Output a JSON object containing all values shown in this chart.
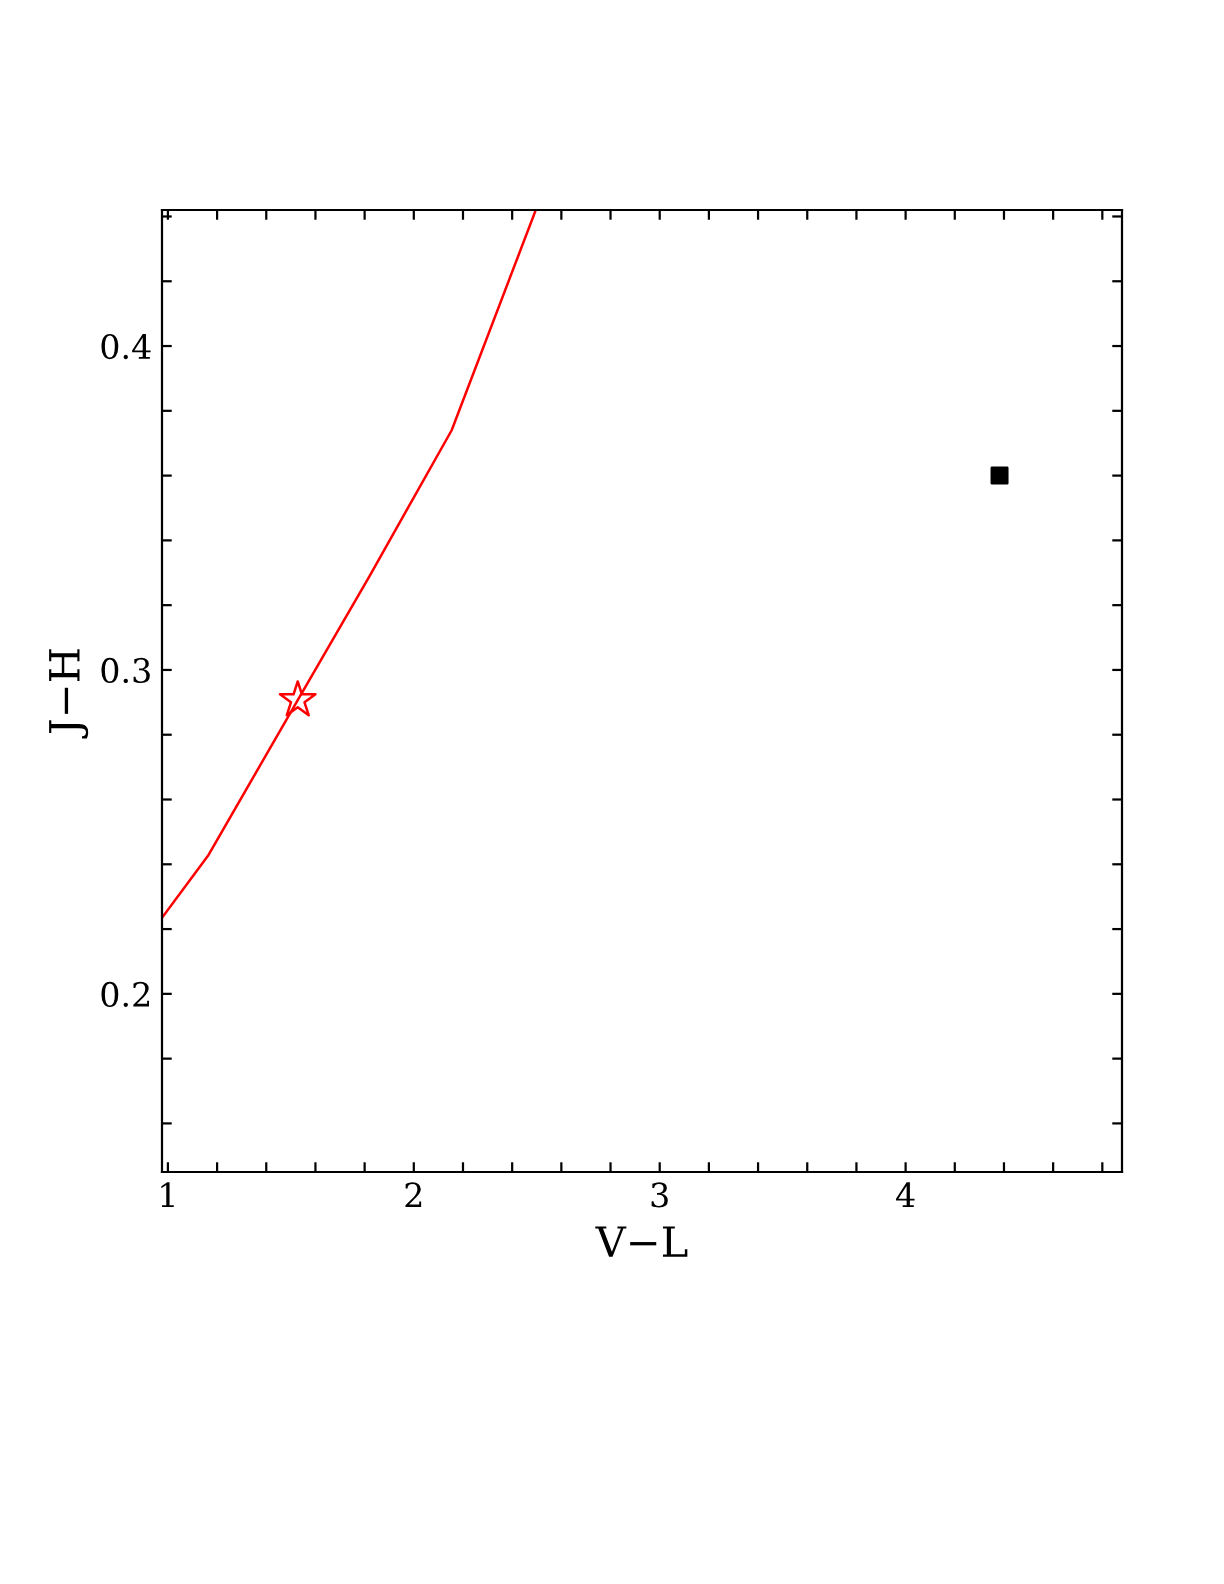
{
  "chart_data": {
    "type": "line",
    "xlabel": "V−L",
    "ylabel": "J−H",
    "xlim": [
      0.976,
      4.88
    ],
    "ylim": [
      0.145,
      0.442
    ],
    "xticks": [
      1,
      2,
      3,
      4,
      {
        "value": 1.2,
        "label": null
      },
      {
        "value": 1.4,
        "label": null
      },
      {
        "value": 1.6,
        "label": null
      },
      {
        "value": 1.8,
        "label": null
      },
      {
        "value": 2.2,
        "label": null
      },
      {
        "value": 2.4,
        "label": null
      },
      {
        "value": 2.6,
        "label": null
      },
      {
        "value": 2.8,
        "label": null
      },
      {
        "value": 3.2,
        "label": null
      },
      {
        "value": 3.4,
        "label": null
      },
      {
        "value": 3.6,
        "label": null
      },
      {
        "value": 3.8,
        "label": null
      },
      {
        "value": 4.2,
        "label": null
      },
      {
        "value": 4.4,
        "label": null
      },
      {
        "value": 4.6,
        "label": null
      },
      {
        "value": 4.8,
        "label": null
      }
    ],
    "yticks": [
      0.2,
      0.3,
      0.4,
      {
        "value": 0.16,
        "label": null
      },
      {
        "value": 0.18,
        "label": null
      },
      {
        "value": 0.22,
        "label": null
      },
      {
        "value": 0.24,
        "label": null
      },
      {
        "value": 0.26,
        "label": null
      },
      {
        "value": 0.28,
        "label": null
      },
      {
        "value": 0.32,
        "label": null
      },
      {
        "value": 0.34,
        "label": null
      },
      {
        "value": 0.36,
        "label": null
      },
      {
        "value": 0.38,
        "label": null
      },
      {
        "value": 0.42,
        "label": null
      },
      {
        "value": 0.44,
        "label": null
      }
    ],
    "grid": false,
    "legend": false,
    "series": [
      {
        "color": "#ff0000",
        "marker": "none",
        "line_style": "solid",
        "x": [
          0.976,
          1.163,
          1.528,
          1.82,
          2.154,
          2.496
        ],
        "values": [
          0.2235,
          0.2426,
          0.2907,
          0.329,
          0.374,
          0.442
        ]
      },
      {
        "type": "scatter",
        "color": "#ff0000",
        "marker": "star",
        "x": [
          1.528
        ],
        "values": [
          0.2907
        ]
      },
      {
        "type": "scatter",
        "color": "#000000",
        "marker": "square",
        "x": [
          4.382
        ],
        "values": [
          0.36
        ]
      }
    ]
  }
}
